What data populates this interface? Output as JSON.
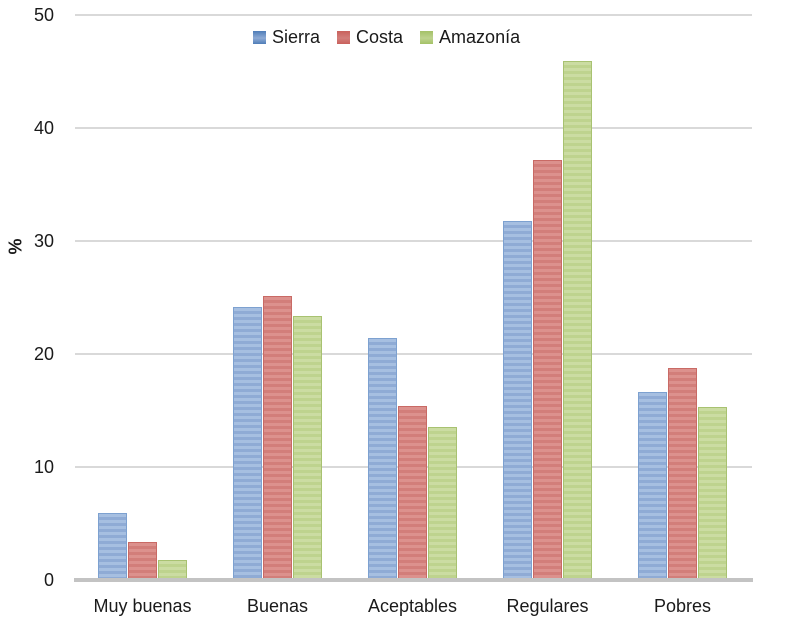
{
  "chart_data": {
    "type": "bar",
    "title": "",
    "xlabel": "",
    "ylabel": "%",
    "categories": [
      "Muy buenas",
      "Buenas",
      "Aceptables",
      "Regulares",
      "Pobres"
    ],
    "series": [
      {
        "name": "Sierra",
        "legend_color": "#4e7db8",
        "bar_stripe_light": "#a6bfe1",
        "bar_stripe_dark": "#8fabd5",
        "bar_border": "#7da1d0",
        "values": [
          5.9,
          24.2,
          21.4,
          31.8,
          16.6
        ]
      },
      {
        "name": "Costa",
        "legend_color": "#c9615c",
        "bar_stripe_light": "#dc918d",
        "bar_stripe_dark": "#d27e7a",
        "bar_border": "#c96a65",
        "values": [
          3.4,
          25.1,
          15.4,
          37.2,
          18.8
        ]
      },
      {
        "name": "Amazonía",
        "legend_color": "#a4c167",
        "bar_stripe_light": "#cbdca2",
        "bar_stripe_dark": "#bed38e",
        "bar_border": "#a8c271",
        "values": [
          1.8,
          23.4,
          13.5,
          45.9,
          15.3
        ]
      }
    ],
    "ylim": [
      0,
      50
    ],
    "yticks": [
      0,
      10,
      20,
      30,
      40,
      50
    ],
    "grid": true,
    "legend_position": "top-center",
    "axis_color": "#c3c3c3",
    "gridline_color": "#d9d9d9",
    "text_color": "#1a1a1a"
  }
}
